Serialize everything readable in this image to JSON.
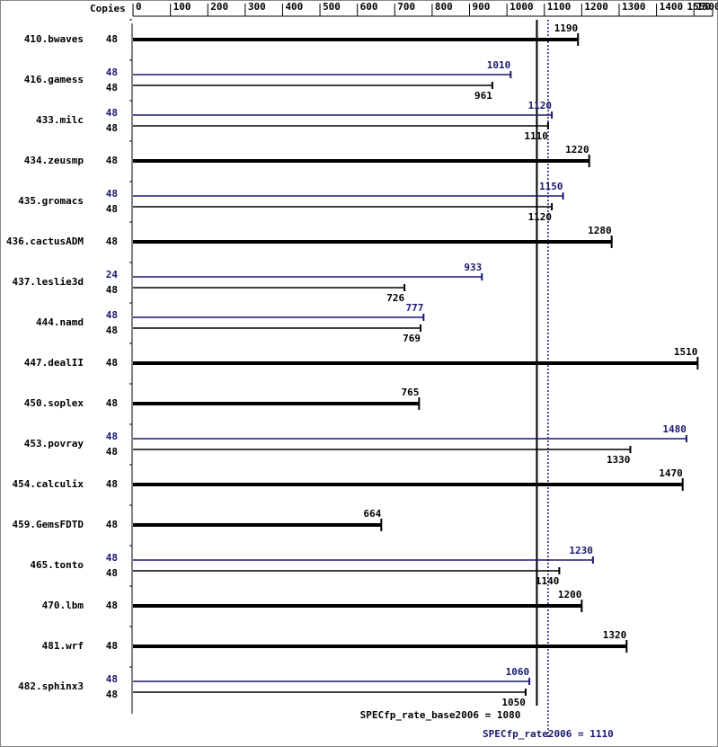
{
  "chart_data": {
    "type": "bar",
    "orientation": "horizontal",
    "copies_label": "Copies",
    "categories": [
      "410.bwaves",
      "416.gamess",
      "433.milc",
      "434.zeusmp",
      "435.gromacs",
      "436.cactusADM",
      "437.leslie3d",
      "444.namd",
      "447.dealII",
      "450.soplex",
      "453.povray",
      "454.calculix",
      "459.GemsFDTD",
      "465.tonto",
      "470.lbm",
      "481.wrf",
      "482.sphinx3"
    ],
    "series": [
      {
        "color": "#000000",
        "values": [
          1190,
          961,
          1110,
          1220,
          1120,
          1280,
          726,
          769,
          1510,
          765,
          1330,
          1470,
          664,
          1140,
          1200,
          1320,
          1050
        ],
        "copies": [
          48,
          48,
          48,
          48,
          48,
          48,
          48,
          48,
          48,
          48,
          48,
          48,
          48,
          48,
          48,
          48,
          48
        ]
      },
      {
        "color": "#191970",
        "values": [
          null,
          1010,
          1120,
          null,
          1150,
          null,
          933,
          777,
          null,
          null,
          1480,
          null,
          null,
          1230,
          null,
          null,
          1060
        ],
        "copies": [
          null,
          48,
          48,
          null,
          48,
          null,
          24,
          48,
          null,
          null,
          48,
          null,
          null,
          48,
          null,
          null,
          48
        ]
      }
    ],
    "xlim": [
      0,
      1550
    ],
    "xticks": [
      0,
      100,
      200,
      300,
      400,
      500,
      600,
      700,
      800,
      900,
      1000,
      1100,
      1200,
      1300,
      1400,
      1500,
      1550
    ],
    "reference_lines": [
      {
        "value": 1080,
        "label": "SPECfp_rate_base2006 = 1080",
        "color": "#000000",
        "dashed": false
      },
      {
        "value": 1110,
        "label": "SPECfp_rate2006 = 1110",
        "color": "#191970",
        "dashed": true
      }
    ]
  }
}
